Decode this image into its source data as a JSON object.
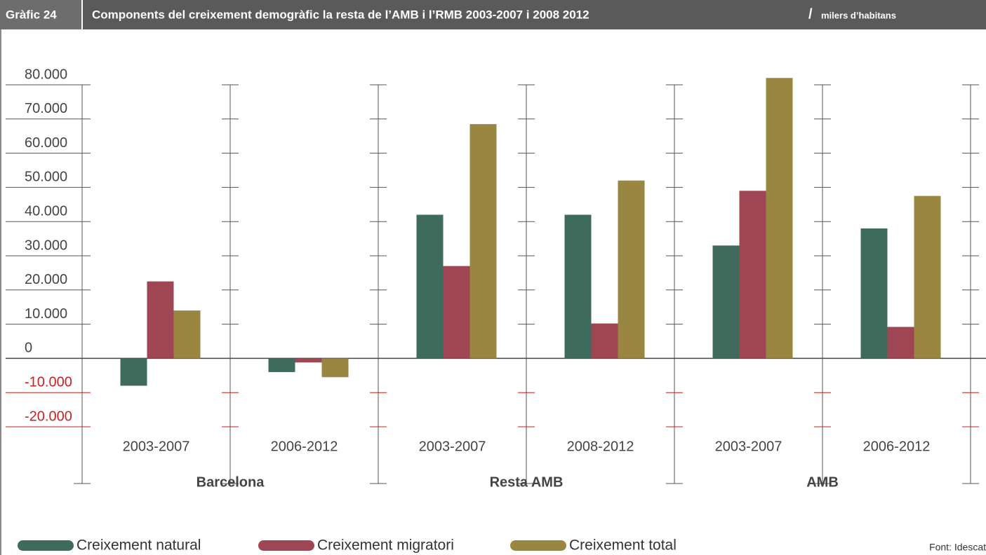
{
  "chart_data": {
    "type": "bar",
    "label": "Gràfic 24",
    "title": "Components del creixement demogràfic la resta de l’AMB i l’RMB 2003-2007 i 2008 2012",
    "separator": "/",
    "subtitle": "milers d’habitans",
    "groups": [
      "Barcelona",
      "Resta AMB",
      "AMB"
    ],
    "categories": [
      "2003-2007",
      "2006-2012",
      "2003-2007",
      "2008-2012",
      "2003-2007",
      "2006-2012"
    ],
    "series": [
      {
        "name": "Creixement natural",
        "color": "#3f6b5c",
        "values": [
          -8000,
          -4000,
          42000,
          42000,
          33000,
          38000
        ]
      },
      {
        "name": "Creixement migratori",
        "color": "#9e4654",
        "values": [
          22500,
          -1200,
          27000,
          10200,
          49000,
          9200
        ]
      },
      {
        "name": "Creixement total",
        "color": "#998640",
        "values": [
          14000,
          -5500,
          68500,
          52000,
          82000,
          47500
        ]
      }
    ],
    "ylim": [
      -20000,
      80000
    ],
    "yticks": [
      {
        "value": -20000,
        "label": "-20.000"
      },
      {
        "value": -10000,
        "label": "-10.000"
      },
      0,
      {
        "value": 10000,
        "label": "10.000"
      },
      {
        "value": 20000,
        "label": "20.000"
      },
      {
        "value": 30000,
        "label": "30.000"
      },
      {
        "value": 40000,
        "label": "40.000"
      },
      {
        "value": 50000,
        "label": "50.000"
      },
      {
        "value": 60000,
        "label": "60.000"
      },
      {
        "value": 70000,
        "label": "70.000"
      },
      {
        "value": 80000,
        "label": "80.000"
      }
    ],
    "negative_tick_color": "#cc1f1f",
    "source": "Font: Idescat"
  }
}
